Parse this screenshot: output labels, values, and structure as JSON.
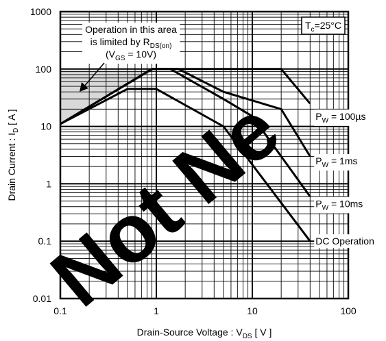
{
  "chart_data": {
    "type": "line",
    "scale": "log-log",
    "grid": true,
    "xlabel": {
      "main": "Drain-Source  Voltage : V",
      "sub": "DS",
      "tail": " [ V ]"
    },
    "ylabel": {
      "main": "Drain  Current : I",
      "sub": "D",
      "tail": " [ A ]"
    },
    "xlim": [
      0.1,
      100
    ],
    "ylim": [
      0.01,
      1000
    ],
    "x_ticks": [
      "0.1",
      "1",
      "10",
      "100"
    ],
    "y_ticks": [
      "0.01",
      "0.1",
      "1",
      "10",
      "100",
      "1000"
    ],
    "box_label": {
      "prefix": "T",
      "sub": "c",
      "suffix": "=25°C"
    },
    "annotation": {
      "line1": "Operation in this area",
      "line2": {
        "prefix": "is limited by R",
        "sub": "DS(on)"
      },
      "line3": {
        "prefix": "(V",
        "sub": "GS",
        "suffix": " = 10V)"
      }
    },
    "limit_region": {
      "ron_x": [
        0.1,
        1
      ],
      "ron_y": [
        11,
        100
      ]
    },
    "series": [
      {
        "label": {
          "prefix": "P",
          "sub": "W",
          "suffix": " = 100µs"
        },
        "x": [
          0.1,
          0.9,
          1.8,
          5,
          20,
          40
        ],
        "y": [
          11,
          100,
          100,
          100,
          100,
          25
        ],
        "label_at": [
          40,
          15
        ]
      },
      {
        "label": {
          "prefix": "P",
          "sub": "W",
          "suffix": " = 1ms"
        },
        "x": [
          0.1,
          0.9,
          1.7,
          5,
          20,
          40
        ],
        "y": [
          11,
          100,
          100,
          40,
          20,
          3
        ],
        "label_at": [
          40,
          2.5
        ]
      },
      {
        "label": {
          "prefix": "P",
          "sub": "W",
          "suffix": " = 10ms"
        },
        "x": [
          0.1,
          0.9,
          1.4,
          5,
          10,
          40
        ],
        "y": [
          11,
          100,
          100,
          30,
          15,
          0.6
        ],
        "label_at": [
          40,
          0.45
        ]
      },
      {
        "label": {
          "prefix": "DC Operation",
          "sub": "",
          "suffix": ""
        },
        "x": [
          0.1,
          0.5,
          1.0,
          5,
          40
        ],
        "y": [
          11,
          45,
          45,
          10,
          0.1
        ],
        "label_at": [
          40,
          0.1
        ]
      }
    ],
    "watermark": "Not Ne"
  }
}
